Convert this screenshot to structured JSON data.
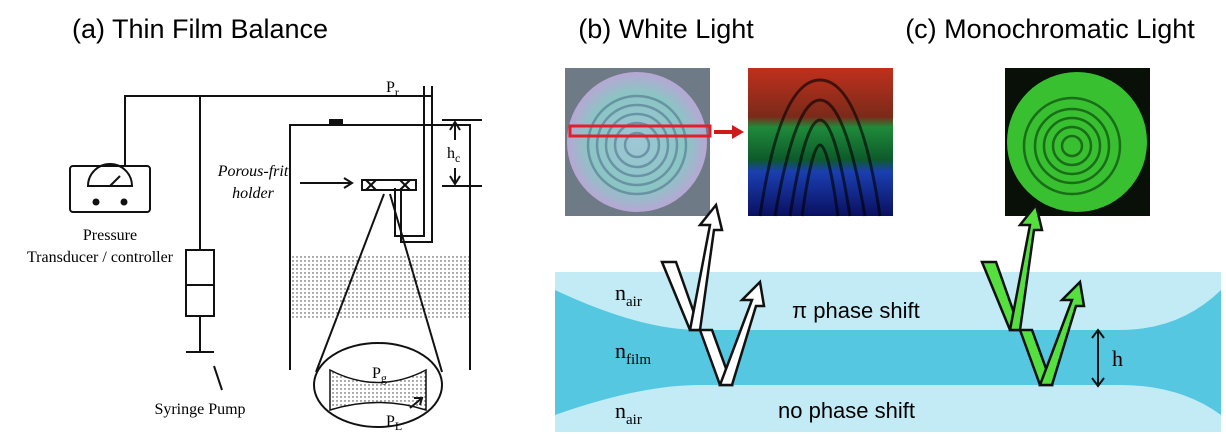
{
  "panels": [
    {
      "title": "(a) Thin Film Balance"
    },
    {
      "title": "(b) White Light"
    },
    {
      "title": "(c) Monochromatic Light"
    }
  ],
  "apparatus": {
    "reference_pressure": {
      "base": "P",
      "sub": "r"
    },
    "capillary_height": {
      "base": "h",
      "sub": "c"
    },
    "holder": [
      "Porous-frit",
      "holder"
    ],
    "transducer": [
      "Pressure",
      "Transducer / controller"
    ],
    "pump": "Syringe Pump",
    "gas_pressure": {
      "base": "P",
      "sub": "g"
    },
    "liquid_pressure": {
      "base": "P",
      "sub": "L"
    }
  },
  "film": {
    "top_medium": {
      "base": "n",
      "sub": "air"
    },
    "film_medium": {
      "base": "n",
      "sub": "film"
    },
    "bottom_medium": {
      "base": "n",
      "sub": "air"
    },
    "top_reflection": "π phase shift",
    "bottom_reflection": "no phase shift",
    "thickness": "h"
  }
}
